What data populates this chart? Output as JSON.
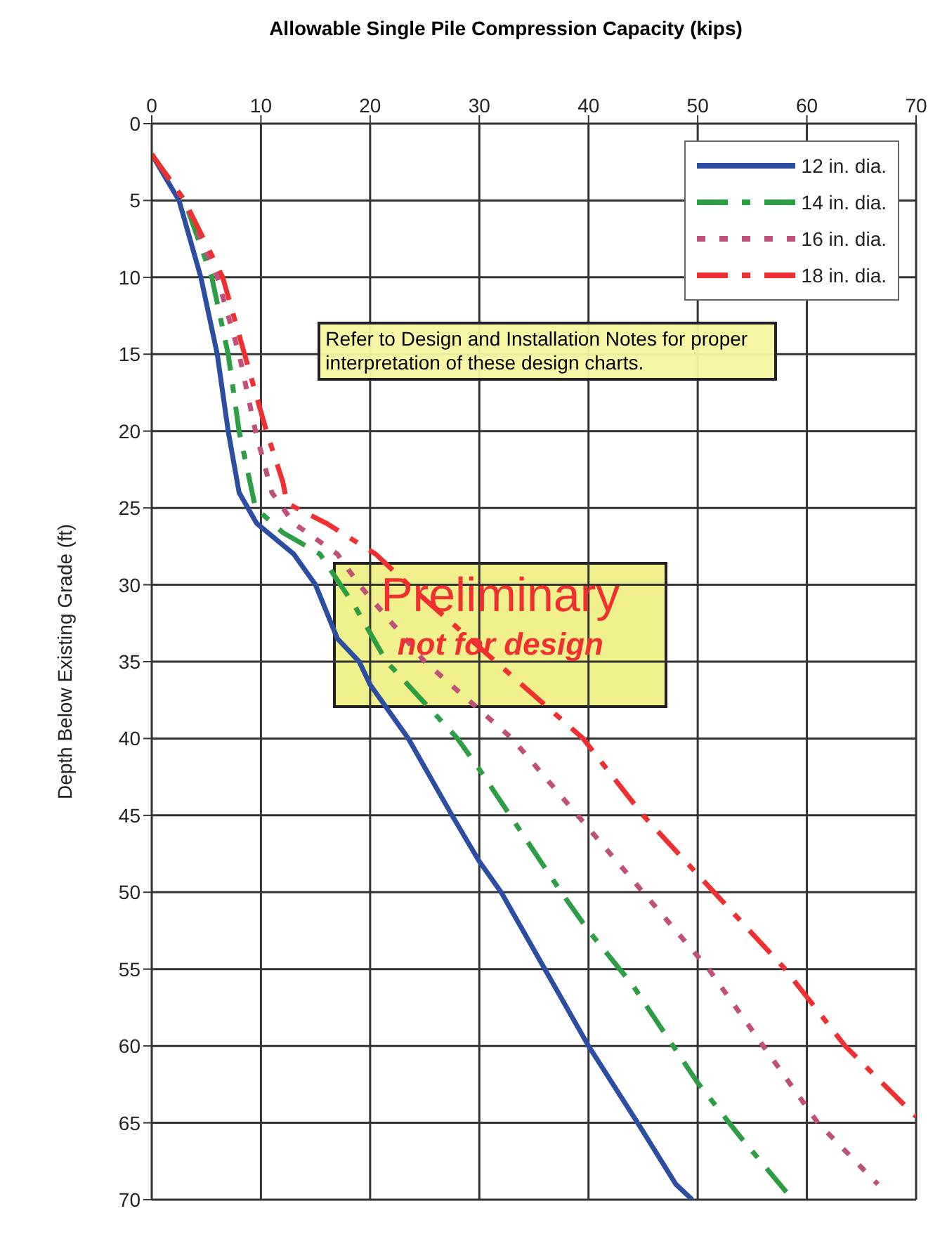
{
  "chart_data": {
    "type": "line",
    "xlabel": "Allowable Single Pile Compression Capacity (kips)",
    "ylabel": "Depth Below Existing Grade (ft)",
    "xlim": [
      0,
      70
    ],
    "xticks": [
      0,
      10,
      20,
      30,
      40,
      50,
      60,
      70
    ],
    "ylim": [
      70,
      0
    ],
    "yticks": [
      0,
      5,
      10,
      15,
      20,
      25,
      30,
      35,
      40,
      45,
      50,
      55,
      60,
      65,
      70
    ],
    "grid": true,
    "legend": "top right",
    "marker": "none",
    "annotations": [
      "Refer to Design and Installation Notes for proper interpretation of these design charts.",
      "Preliminary",
      "not for design"
    ],
    "series": [
      {
        "name": "12 in. dia.",
        "color": "#2b4ea2",
        "line_style": "solid",
        "x": [
          0,
          2.5,
          4.5,
          6,
          7,
          8,
          9.6,
          13,
          15,
          17,
          19,
          20,
          23.5,
          27.5,
          30,
          32,
          36,
          40,
          44.5,
          48,
          49.5
        ],
        "values": [
          2,
          5,
          10,
          15,
          20,
          24,
          26,
          28,
          30,
          33.5,
          35,
          36.5,
          40,
          45,
          48,
          50,
          55,
          60,
          65,
          69,
          70
        ]
      },
      {
        "name": "14 in. dia.",
        "color": "#2e9e44",
        "line_style": "dashed",
        "x": [
          0,
          3,
          5.5,
          7,
          8,
          9.5,
          12,
          15.4,
          18.6,
          21.5,
          28,
          30,
          37.5,
          40,
          44,
          50,
          54,
          58.7
        ],
        "values": [
          2,
          5,
          10,
          15,
          20,
          25,
          26.6,
          28,
          31.4,
          35,
          40,
          42,
          50,
          52.5,
          56,
          62.4,
          66,
          70
        ]
      },
      {
        "name": "16 in. dia.",
        "color": "#c0507a",
        "line_style": "dotted",
        "x": [
          0,
          3,
          6,
          8,
          9.5,
          11,
          13,
          17,
          19,
          25,
          33,
          39,
          45,
          51,
          56,
          61,
          66.5
        ],
        "values": [
          2,
          5,
          10,
          15,
          20,
          24,
          26,
          28,
          30,
          35,
          40,
          45,
          50,
          55,
          60,
          65,
          69
        ]
      },
      {
        "name": "18 in. dia.",
        "color": "#f03030",
        "line_style": "dashed",
        "x": [
          0,
          3,
          6.5,
          8.5,
          10.5,
          12,
          12.4,
          16,
          20.5,
          23.5,
          31.5,
          39.5,
          45,
          51.5,
          58,
          63.5,
          70
        ],
        "values": [
          2,
          5,
          10,
          15,
          20,
          23.3,
          24.7,
          26,
          28,
          30,
          35,
          40,
          45,
          50,
          55,
          60,
          64.6
        ]
      }
    ]
  }
}
